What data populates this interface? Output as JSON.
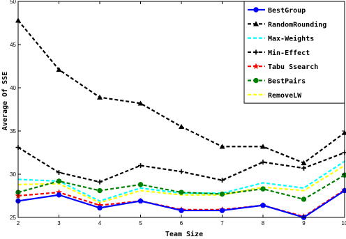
{
  "chart_data": {
    "type": "line",
    "xlabel": "Team Size",
    "ylabel": "Average Of SSE",
    "x": [
      2,
      3,
      4,
      5,
      6,
      7,
      8,
      9,
      10
    ],
    "xlim": [
      2,
      10
    ],
    "ylim": [
      25,
      50
    ],
    "xticks": [
      "2",
      "3",
      "4",
      "5",
      "6",
      "7",
      "8",
      "9",
      "10"
    ],
    "yticks": [
      "25",
      "30",
      "35",
      "40",
      "45",
      "50"
    ],
    "grid": false,
    "legend_position": "top-right",
    "series": [
      {
        "name": "BestGroup",
        "color": "#0000ff",
        "line": "solid",
        "marker": "circle",
        "values": [
          26.9,
          27.6,
          26.1,
          26.9,
          25.8,
          25.8,
          26.4,
          25.0,
          28.1
        ]
      },
      {
        "name": "RandomRounding",
        "color": "#000000",
        "line": "dashed",
        "marker": "triangle",
        "values": [
          47.8,
          42.1,
          38.9,
          38.2,
          35.5,
          33.2,
          33.2,
          31.3,
          34.8
        ]
      },
      {
        "name": "Max-Weights",
        "color": "#00ffff",
        "line": "dashed",
        "marker": "none",
        "values": [
          29.4,
          29.2,
          26.9,
          28.4,
          27.8,
          27.8,
          29.0,
          28.4,
          31.5
        ]
      },
      {
        "name": "Min-Effect",
        "color": "#000000",
        "line": "dashed",
        "marker": "plus",
        "values": [
          33.1,
          30.2,
          29.1,
          31.0,
          30.3,
          29.3,
          31.4,
          30.7,
          32.5
        ]
      },
      {
        "name": "Tabu Ssearch",
        "color": "#ff0000",
        "line": "dashed",
        "marker": "star",
        "values": [
          27.5,
          27.9,
          26.4,
          26.9,
          25.9,
          25.9,
          26.4,
          25.1,
          28.2
        ]
      },
      {
        "name": "BestPairs",
        "color": "#008000",
        "line": "dashed",
        "marker": "circle",
        "values": [
          27.9,
          29.2,
          28.1,
          28.8,
          27.9,
          27.7,
          28.3,
          27.1,
          29.9
        ]
      },
      {
        "name": "RemoveLW",
        "color": "#ffff00",
        "line": "dashed",
        "marker": "none",
        "values": [
          28.8,
          28.9,
          26.7,
          28.1,
          27.6,
          27.6,
          28.5,
          28.1,
          31.0
        ]
      }
    ]
  }
}
